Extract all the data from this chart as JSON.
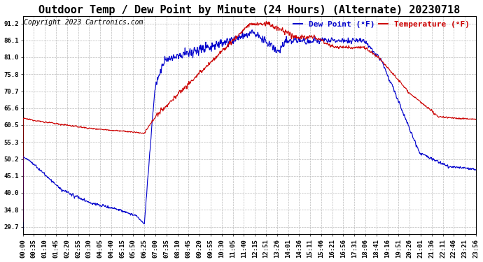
{
  "title": "Outdoor Temp / Dew Point by Minute (24 Hours) (Alternate) 20230718",
  "copyright": "Copyright 2023 Cartronics.com",
  "legend_dew": "Dew Point (°F)",
  "legend_temp": "Temperature (°F)",
  "dew_color": "#0000cc",
  "temp_color": "#cc0000",
  "background_color": "#ffffff",
  "grid_color": "#bbbbbb",
  "yticks": [
    29.7,
    34.8,
    40.0,
    45.1,
    50.2,
    55.3,
    60.5,
    65.6,
    70.7,
    75.8,
    81.0,
    86.1,
    91.2
  ],
  "ylim": [
    27.5,
    93.5
  ],
  "xtick_labels": [
    "00:00",
    "00:35",
    "01:10",
    "01:45",
    "02:20",
    "02:55",
    "03:30",
    "04:05",
    "04:40",
    "05:15",
    "05:50",
    "06:25",
    "07:00",
    "07:35",
    "08:10",
    "08:45",
    "09:20",
    "09:55",
    "10:30",
    "11:05",
    "11:40",
    "12:15",
    "12:51",
    "13:26",
    "14:01",
    "14:36",
    "15:11",
    "15:46",
    "16:21",
    "16:56",
    "17:31",
    "18:06",
    "18:41",
    "19:16",
    "19:51",
    "20:26",
    "21:01",
    "21:36",
    "22:11",
    "22:46",
    "23:21",
    "23:56"
  ],
  "title_fontsize": 11,
  "copyright_fontsize": 7,
  "tick_fontsize": 6.5,
  "legend_fontsize": 8,
  "line_width": 0.8
}
